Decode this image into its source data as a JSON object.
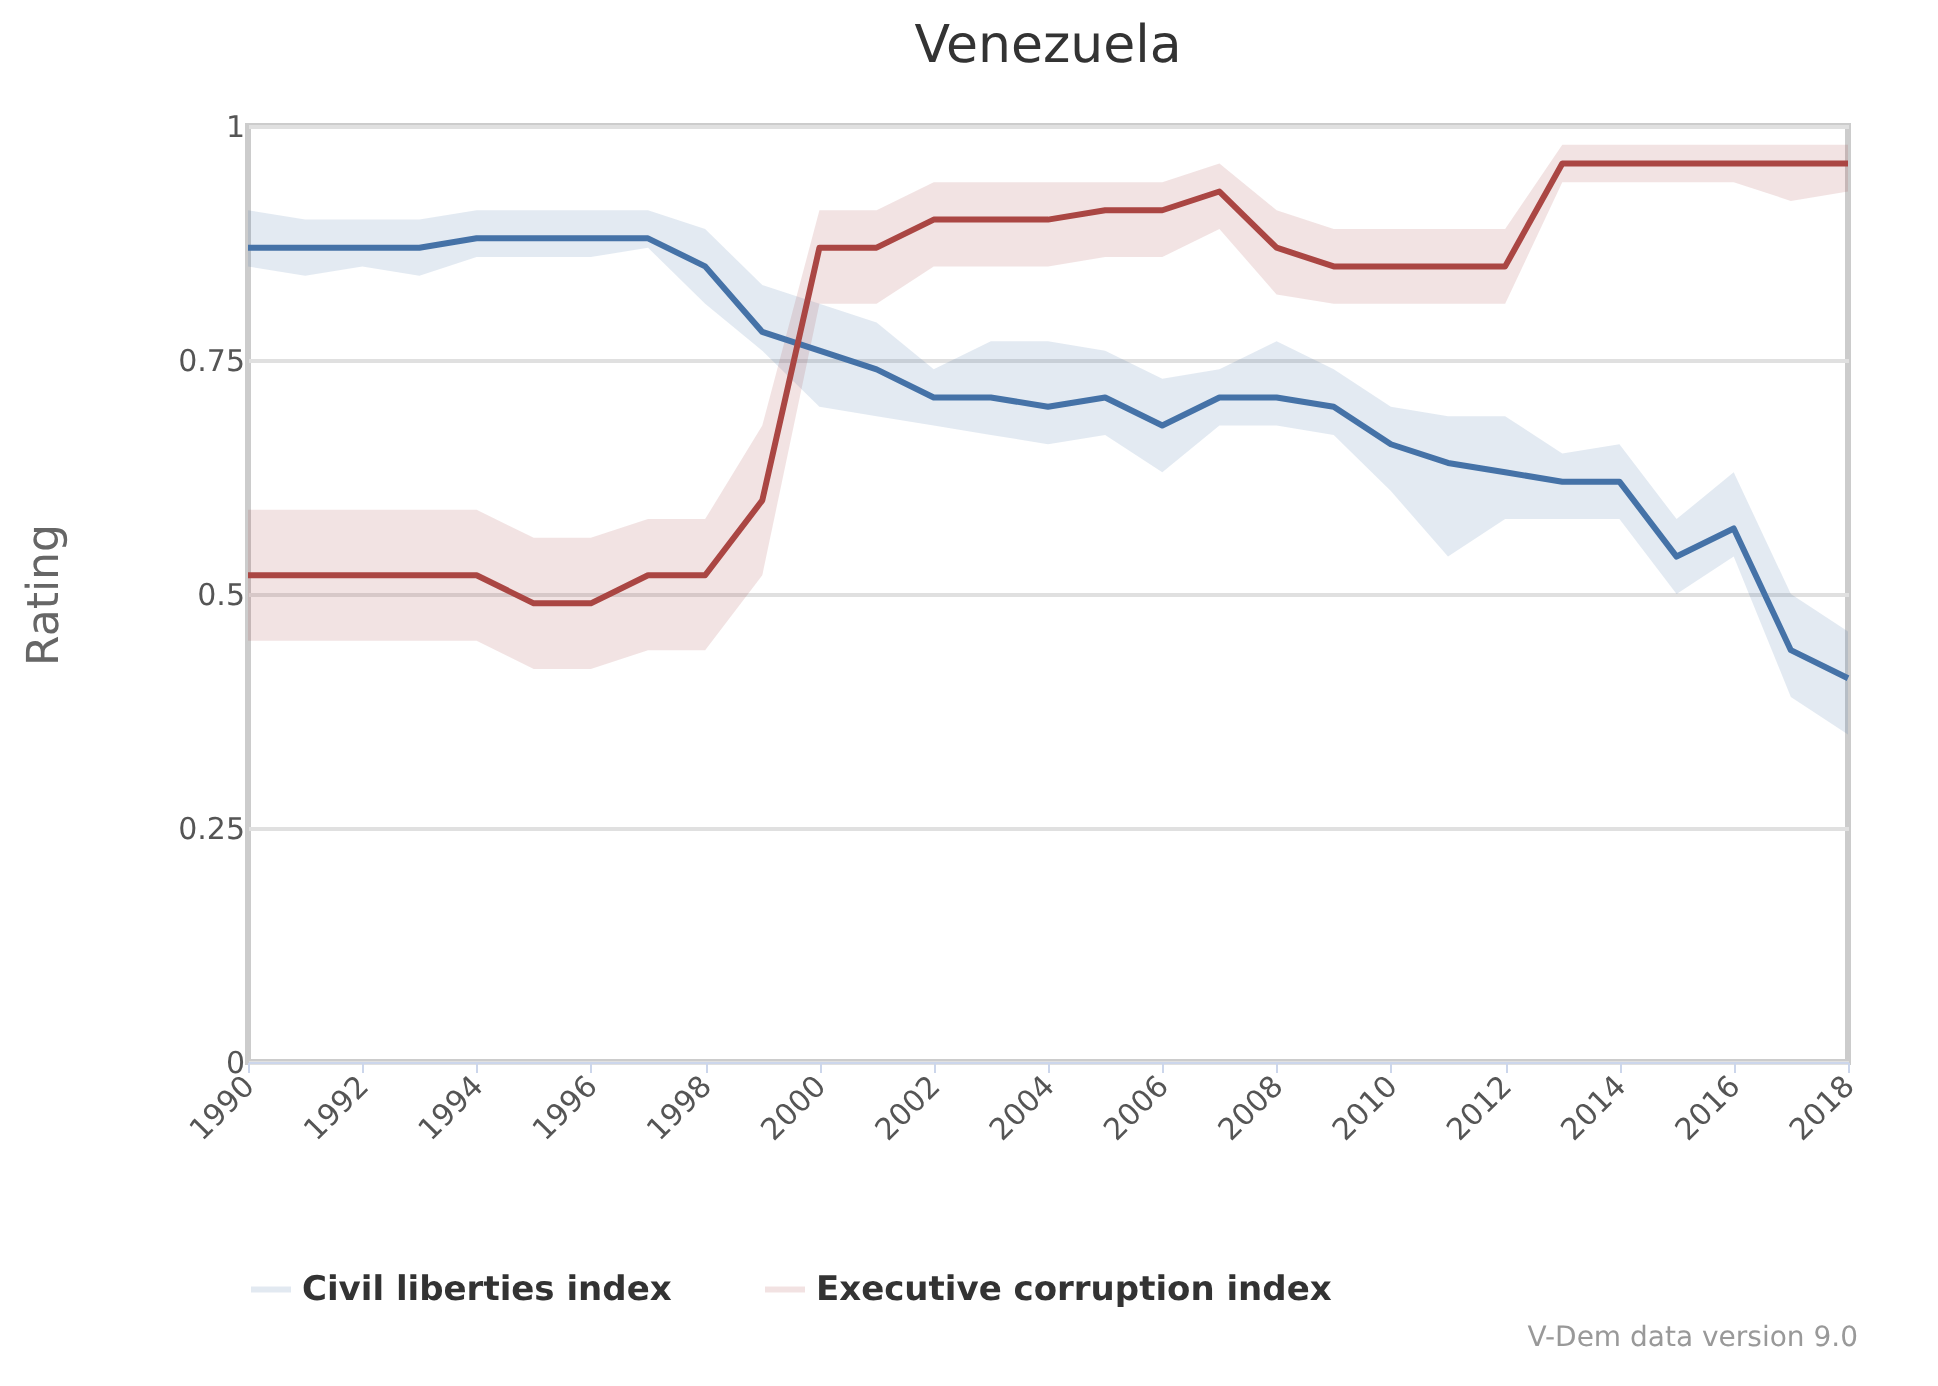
{
  "chart_data": {
    "type": "line",
    "title": "Venezuela",
    "ylabel": "Rating",
    "x": [
      1990,
      1991,
      1992,
      1993,
      1994,
      1995,
      1996,
      1997,
      1998,
      1999,
      2000,
      2001,
      2002,
      2003,
      2004,
      2005,
      2006,
      2007,
      2008,
      2009,
      2010,
      2011,
      2012,
      2013,
      2014,
      2015,
      2016,
      2017,
      2018
    ],
    "series": [
      {
        "name": "Civil liberties index",
        "color": "#4572a7",
        "values": [
          0.87,
          0.87,
          0.87,
          0.87,
          0.88,
          0.88,
          0.88,
          0.88,
          0.85,
          0.78,
          0.76,
          0.74,
          0.71,
          0.71,
          0.7,
          0.71,
          0.68,
          0.71,
          0.71,
          0.7,
          0.66,
          0.64,
          0.63,
          0.62,
          0.62,
          0.54,
          0.57,
          0.44,
          0.41
        ],
        "lower": [
          0.85,
          0.84,
          0.85,
          0.84,
          0.86,
          0.86,
          0.86,
          0.87,
          0.81,
          0.76,
          0.7,
          0.69,
          0.68,
          0.67,
          0.66,
          0.67,
          0.63,
          0.68,
          0.68,
          0.67,
          0.61,
          0.54,
          0.58,
          0.58,
          0.58,
          0.5,
          0.54,
          0.39,
          0.35
        ],
        "upper": [
          0.91,
          0.9,
          0.9,
          0.9,
          0.91,
          0.91,
          0.91,
          0.91,
          0.89,
          0.83,
          0.81,
          0.79,
          0.74,
          0.77,
          0.77,
          0.76,
          0.73,
          0.74,
          0.77,
          0.74,
          0.7,
          0.69,
          0.69,
          0.65,
          0.66,
          0.58,
          0.63,
          0.5,
          0.46
        ]
      },
      {
        "name": "Executive corruption index",
        "color": "#aa4643",
        "values": [
          0.52,
          0.52,
          0.52,
          0.52,
          0.52,
          0.49,
          0.49,
          0.52,
          0.52,
          0.6,
          0.87,
          0.87,
          0.9,
          0.9,
          0.9,
          0.91,
          0.91,
          0.93,
          0.87,
          0.85,
          0.85,
          0.85,
          0.85,
          0.96,
          0.96,
          0.96,
          0.96,
          0.96,
          0.96
        ],
        "lower": [
          0.45,
          0.45,
          0.45,
          0.45,
          0.45,
          0.42,
          0.42,
          0.44,
          0.44,
          0.52,
          0.81,
          0.81,
          0.85,
          0.85,
          0.85,
          0.86,
          0.86,
          0.89,
          0.82,
          0.81,
          0.81,
          0.81,
          0.81,
          0.94,
          0.94,
          0.94,
          0.94,
          0.92,
          0.93
        ],
        "upper": [
          0.59,
          0.59,
          0.59,
          0.59,
          0.59,
          0.56,
          0.56,
          0.58,
          0.58,
          0.68,
          0.91,
          0.91,
          0.94,
          0.94,
          0.94,
          0.94,
          0.94,
          0.96,
          0.91,
          0.89,
          0.89,
          0.89,
          0.89,
          0.98,
          0.98,
          0.98,
          0.98,
          0.98,
          0.98
        ]
      }
    ],
    "xlim": [
      1990,
      2018
    ],
    "xticks": [
      1990,
      1992,
      1994,
      1996,
      1998,
      2000,
      2002,
      2004,
      2006,
      2008,
      2010,
      2012,
      2014,
      2016,
      2018
    ],
    "ylim": [
      0,
      1
    ],
    "yticks": [
      0,
      0.25,
      0.5,
      0.75,
      1
    ],
    "grid": "y",
    "legend": "bottom",
    "marker": "none",
    "line_style": "solid",
    "annotations": [
      "V-Dem data version 9.0"
    ]
  }
}
